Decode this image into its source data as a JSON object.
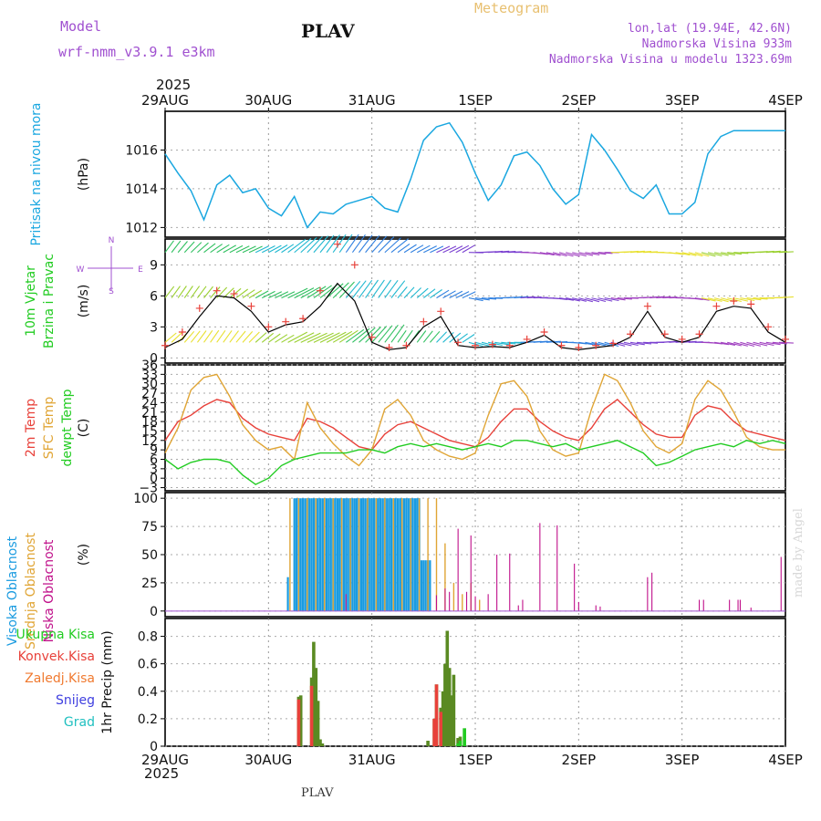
{
  "header": {
    "model_label": "Model",
    "model_name": "wrf-nmm_v3.9.1  e3km",
    "station": "PLAV",
    "app_title": "Meteogram",
    "lonlat": "lon,lat (19.94E, 42.6N)",
    "altitude": "Nadmorska Visina 933m",
    "model_altitude": "Nadmorska Visina u modelu 1323.69m",
    "year_top": "2025",
    "year_bottom": "2025",
    "footer_station": "PLAV",
    "credit": "made by Angel"
  },
  "colors": {
    "pressure": "#1aa7e0",
    "temp2m": "#e8413a",
    "sfc": "#e0a535",
    "dewpt": "#22cc22",
    "high_cloud": "#1a9be0",
    "mid_cloud": "#e0a535",
    "low_cloud": "#c0108a",
    "precip_total": "#5a8a22",
    "precip_conv": "#e8413a",
    "wind_speed": "#e8413a"
  },
  "chart_data": [
    {
      "type": "line",
      "panel": "pressure",
      "title": "Pritisak na nivou mora",
      "ylabel": "(hPa)",
      "ylim": [
        1011.5,
        1018.0
      ],
      "yticks": [
        "1012",
        "1014",
        "1016"
      ],
      "xlim": [
        0,
        144
      ],
      "xticks": [
        "29AUG",
        "30AUG",
        "31AUG",
        "1SEP",
        "2SEP",
        "3SEP",
        "4SEP"
      ],
      "series": [
        {
          "name": "Pritisak na nivou mora",
          "x": [
            0,
            3,
            6,
            9,
            12,
            15,
            18,
            21,
            24,
            27,
            30,
            33,
            36,
            39,
            42,
            45,
            48,
            51,
            54,
            57,
            60,
            63,
            66,
            69,
            72,
            75,
            78,
            81,
            84,
            87,
            90,
            93,
            96,
            99,
            102,
            105,
            108,
            111,
            114,
            117,
            120,
            123,
            126,
            129,
            132,
            135,
            138,
            141,
            144
          ],
          "values": [
            1015.8,
            1014.8,
            1013.9,
            1012.4,
            1014.2,
            1014.7,
            1013.8,
            1014.0,
            1013.0,
            1012.6,
            1013.6,
            1012.0,
            1012.8,
            1012.7,
            1013.2,
            1013.4,
            1013.6,
            1013.0,
            1012.8,
            1014.5,
            1016.5,
            1017.2,
            1017.4,
            1016.4,
            1014.8,
            1013.4,
            1014.2,
            1015.7,
            1015.9,
            1015.2,
            1014.0,
            1013.2,
            1013.7,
            1016.8,
            1016.0,
            1015.0,
            1013.9,
            1013.5,
            1014.2,
            1012.7,
            1012.7,
            1013.3,
            1015.8,
            1016.7,
            1017.0,
            1017.0,
            1017.0,
            1017.0,
            1017.0
          ]
        }
      ]
    },
    {
      "type": "scatter",
      "panel": "wind",
      "title": "10m Vjetar",
      "subtitle": "Brzina i Pravac",
      "ylabel": "(m/s)",
      "ylim": [
        -0.5,
        11.5
      ],
      "yticks": [
        "0",
        "3",
        "6",
        "9"
      ],
      "xlim": [
        0,
        144
      ],
      "compass": {
        "west": "W",
        "east": "E",
        "north": "N",
        "south": "S"
      },
      "barb_rows": [
        1.5,
        5.8,
        10.2
      ],
      "direction_legend": [
        "N",
        "E",
        "S",
        "W"
      ],
      "series": [
        {
          "name": "speed_model",
          "x": [
            0,
            4,
            8,
            12,
            16,
            20,
            24,
            28,
            32,
            36,
            40,
            44,
            48,
            52,
            56,
            60,
            64,
            68,
            72,
            76,
            80,
            84,
            88,
            92,
            96,
            100,
            104,
            108,
            112,
            116,
            120,
            124,
            128,
            132,
            136,
            140,
            144
          ],
          "values": [
            1.0,
            1.8,
            4.0,
            6.0,
            5.8,
            4.5,
            2.5,
            3.2,
            3.5,
            5.0,
            7.2,
            5.5,
            1.5,
            0.8,
            1.0,
            3.0,
            4.0,
            1.2,
            1.0,
            1.1,
            1.0,
            1.5,
            2.2,
            1.0,
            0.8,
            1.0,
            1.2,
            2.0,
            4.5,
            2.0,
            1.5,
            2.0,
            4.5,
            5.0,
            4.8,
            2.5,
            1.5
          ]
        },
        {
          "name": "speed_gust",
          "x": [
            0,
            4,
            8,
            12,
            16,
            20,
            24,
            28,
            32,
            36,
            40,
            44,
            48,
            52,
            56,
            60,
            64,
            68,
            72,
            76,
            80,
            84,
            88,
            92,
            96,
            100,
            104,
            108,
            112,
            116,
            120,
            124,
            128,
            132,
            136,
            140,
            144
          ],
          "values": [
            1.2,
            2.5,
            4.8,
            6.5,
            6.2,
            5.0,
            3.0,
            3.5,
            3.8,
            6.5,
            11.0,
            9.0,
            2.0,
            1.0,
            1.2,
            3.5,
            4.5,
            1.5,
            1.2,
            1.3,
            1.2,
            1.8,
            2.5,
            1.2,
            1.0,
            1.2,
            1.4,
            2.3,
            5.0,
            2.3,
            1.8,
            2.3,
            5.0,
            5.5,
            5.2,
            3.0,
            1.8
          ]
        }
      ]
    },
    {
      "type": "line",
      "panel": "temperature",
      "title": "2m Temp",
      "ylabel": "(C)",
      "ylim": [
        -4,
        36
      ],
      "yticks": [
        "−3",
        "0",
        "3",
        "6",
        "9",
        "12",
        "15",
        "18",
        "21",
        "24",
        "27",
        "30",
        "33",
        "36"
      ],
      "xlim": [
        0,
        144
      ],
      "series": [
        {
          "name": "2m Temp",
          "x": [
            0,
            3,
            6,
            9,
            12,
            15,
            18,
            21,
            24,
            27,
            30,
            33,
            36,
            39,
            42,
            45,
            48,
            51,
            54,
            57,
            60,
            63,
            66,
            69,
            72,
            75,
            78,
            81,
            84,
            87,
            90,
            93,
            96,
            99,
            102,
            105,
            108,
            111,
            114,
            117,
            120,
            123,
            126,
            129,
            132,
            135,
            138,
            141,
            144
          ],
          "values": [
            12,
            18,
            20,
            23,
            25,
            24,
            19,
            16,
            14,
            13,
            12,
            19,
            18,
            16,
            13,
            10,
            9,
            14,
            17,
            18,
            16,
            14,
            12,
            11,
            10,
            13,
            18,
            22,
            22,
            18,
            15,
            13,
            12,
            16,
            22,
            25,
            21,
            17,
            14,
            13,
            13,
            20,
            23,
            22,
            18,
            15,
            14,
            13,
            12
          ]
        },
        {
          "name": "SFC Temp",
          "x": [
            0,
            3,
            6,
            9,
            12,
            15,
            18,
            21,
            24,
            27,
            30,
            33,
            36,
            39,
            42,
            45,
            48,
            51,
            54,
            57,
            60,
            63,
            66,
            69,
            72,
            75,
            78,
            81,
            84,
            87,
            90,
            93,
            96,
            99,
            102,
            105,
            108,
            111,
            114,
            117,
            120,
            123,
            126,
            129,
            132,
            135,
            138,
            141,
            144
          ],
          "values": [
            8,
            16,
            28,
            32,
            33,
            26,
            17,
            12,
            9,
            10,
            6,
            24,
            16,
            11,
            7,
            4,
            9,
            22,
            25,
            20,
            12,
            9,
            7,
            6,
            8,
            20,
            30,
            31,
            26,
            15,
            9,
            7,
            8,
            22,
            33,
            31,
            24,
            15,
            10,
            8,
            11,
            25,
            31,
            28,
            21,
            13,
            10,
            9,
            9
          ]
        },
        {
          "name": "dewpt Temp",
          "x": [
            0,
            3,
            6,
            9,
            12,
            15,
            18,
            21,
            24,
            27,
            30,
            33,
            36,
            39,
            42,
            45,
            48,
            51,
            54,
            57,
            60,
            63,
            66,
            69,
            72,
            75,
            78,
            81,
            84,
            87,
            90,
            93,
            96,
            99,
            102,
            105,
            108,
            111,
            114,
            117,
            120,
            123,
            126,
            129,
            132,
            135,
            138,
            141,
            144
          ],
          "values": [
            6,
            3,
            5,
            6,
            6,
            5,
            1,
            -2,
            0,
            4,
            6,
            7,
            8,
            8,
            8,
            9,
            9,
            8,
            10,
            11,
            10,
            11,
            10,
            9,
            10,
            11,
            10,
            12,
            12,
            11,
            10,
            11,
            9,
            10,
            11,
            12,
            10,
            8,
            4,
            5,
            7,
            9,
            10,
            11,
            10,
            12,
            11,
            12,
            11
          ]
        }
      ]
    },
    {
      "type": "bar",
      "panel": "cloud",
      "title": "Oblacnost",
      "ylabel": "(%)",
      "ylim": [
        -5,
        105
      ],
      "yticks": [
        "0",
        "25",
        "50",
        "75",
        "100"
      ],
      "xlim": [
        0,
        144
      ],
      "series": [
        {
          "name": "Visoka Oblacnost",
          "x": [
            28.5,
            30.0,
            30.5,
            31.0,
            31.5,
            32.0,
            32.5,
            33.0,
            33.5,
            34.0,
            34.5,
            35.0,
            35.5,
            36.0,
            36.5,
            37.0,
            37.5,
            38.0,
            38.5,
            39.0,
            39.5,
            40.0,
            40.5,
            41.0,
            41.5,
            42.0,
            42.5,
            43.0,
            43.5,
            44.0,
            44.5,
            45.0,
            45.5,
            46.0,
            46.5,
            47.0,
            47.5,
            48.0,
            48.5,
            49.0,
            49.5,
            50.0,
            50.5,
            51.0,
            51.5,
            52.0,
            52.5,
            53.0,
            53.5,
            54.0,
            54.5,
            55.0,
            55.5,
            56.0,
            56.5,
            57.0,
            57.5,
            58.0,
            58.5,
            59.0,
            59.5,
            60.0,
            60.5,
            61.0,
            61.5
          ],
          "values": [
            30,
            100,
            100,
            100,
            100,
            100,
            100,
            100,
            100,
            100,
            100,
            100,
            100,
            100,
            100,
            100,
            100,
            100,
            100,
            100,
            100,
            100,
            100,
            100,
            100,
            100,
            100,
            100,
            100,
            100,
            100,
            100,
            100,
            100,
            100,
            100,
            100,
            100,
            100,
            100,
            100,
            100,
            100,
            100,
            100,
            100,
            100,
            100,
            100,
            100,
            100,
            100,
            100,
            100,
            100,
            100,
            100,
            100,
            100,
            100,
            45,
            45,
            45,
            45,
            45
          ]
        },
        {
          "name": "Srednja Oblacnost",
          "x": [
            29.0,
            31.0,
            33.0,
            35.0,
            37.0,
            39.0,
            41.0,
            43.0,
            45.0,
            47.0,
            49.0,
            51.0,
            53.0,
            55.0,
            57.0,
            59.0,
            61.0,
            63.0,
            65.0,
            67.0,
            69.0,
            71.0,
            73.0
          ],
          "values": [
            100,
            100,
            100,
            100,
            100,
            100,
            100,
            100,
            100,
            100,
            100,
            100,
            100,
            100,
            100,
            100,
            100,
            100,
            60,
            25,
            15,
            25,
            10
          ]
        },
        {
          "name": "Niska Oblacnost",
          "x": [
            42.0,
            63.0,
            65.0,
            66.0,
            68.0,
            70.0,
            71.0,
            72.0,
            75.0,
            77.0,
            80.0,
            82.0,
            83.0,
            87.0,
            91.0,
            95.0,
            96.0,
            100.0,
            101.0,
            112.0,
            113.0,
            124.0,
            125.0,
            131.0,
            133.0,
            133.5,
            136.0,
            143.0
          ],
          "values": [
            15,
            14,
            20,
            17,
            73,
            17,
            67,
            13,
            15,
            50,
            51,
            5,
            10,
            78,
            76,
            42,
            8,
            5,
            4,
            30,
            34,
            10,
            10,
            10,
            10,
            10,
            3,
            48
          ]
        }
      ]
    },
    {
      "type": "bar",
      "panel": "precip",
      "ylabel": "1hr Precip (mm)",
      "ylim": [
        0,
        0.93
      ],
      "yticks": [
        "0",
        "0.2",
        "0.4",
        "0.6",
        "0.8"
      ],
      "xlim": [
        0,
        144
      ],
      "xticks": [
        "29AUG",
        "30AUG",
        "31AUG",
        "1SEP",
        "2SEP",
        "3SEP",
        "4SEP"
      ],
      "legend": [
        "Ukupna  Kisa",
        "Konvek.Kisa",
        "Zaledj.Kisa",
        "Snijeg",
        "Grad"
      ],
      "series": [
        {
          "name": "Ukupna  Kisa",
          "x": [
            31.0,
            31.5,
            34.0,
            34.5,
            35.0,
            35.5,
            36.0,
            36.5,
            61.0,
            62.5,
            63.0,
            64.0,
            64.5,
            65.0,
            65.5,
            66.0,
            66.5,
            67.0,
            68.0,
            68.5,
            69.5
          ],
          "values": [
            0.36,
            0.37,
            0.5,
            0.76,
            0.57,
            0.33,
            0.05,
            0.02,
            0.04,
            0.2,
            0.45,
            0.28,
            0.4,
            0.6,
            0.84,
            0.57,
            0.37,
            0.52,
            0.06,
            0.07,
            0.13
          ]
        },
        {
          "name": "Konvek.Kisa",
          "x": [
            31.0,
            34.0,
            62.5,
            63.0,
            64.0
          ],
          "values": [
            0.34,
            0.44,
            0.2,
            0.45,
            0.25
          ]
        },
        {
          "name": "Grad",
          "x": [
            68.0,
            68.5,
            69.5
          ],
          "values": [
            0.02,
            0.04,
            0.13
          ]
        }
      ]
    }
  ]
}
